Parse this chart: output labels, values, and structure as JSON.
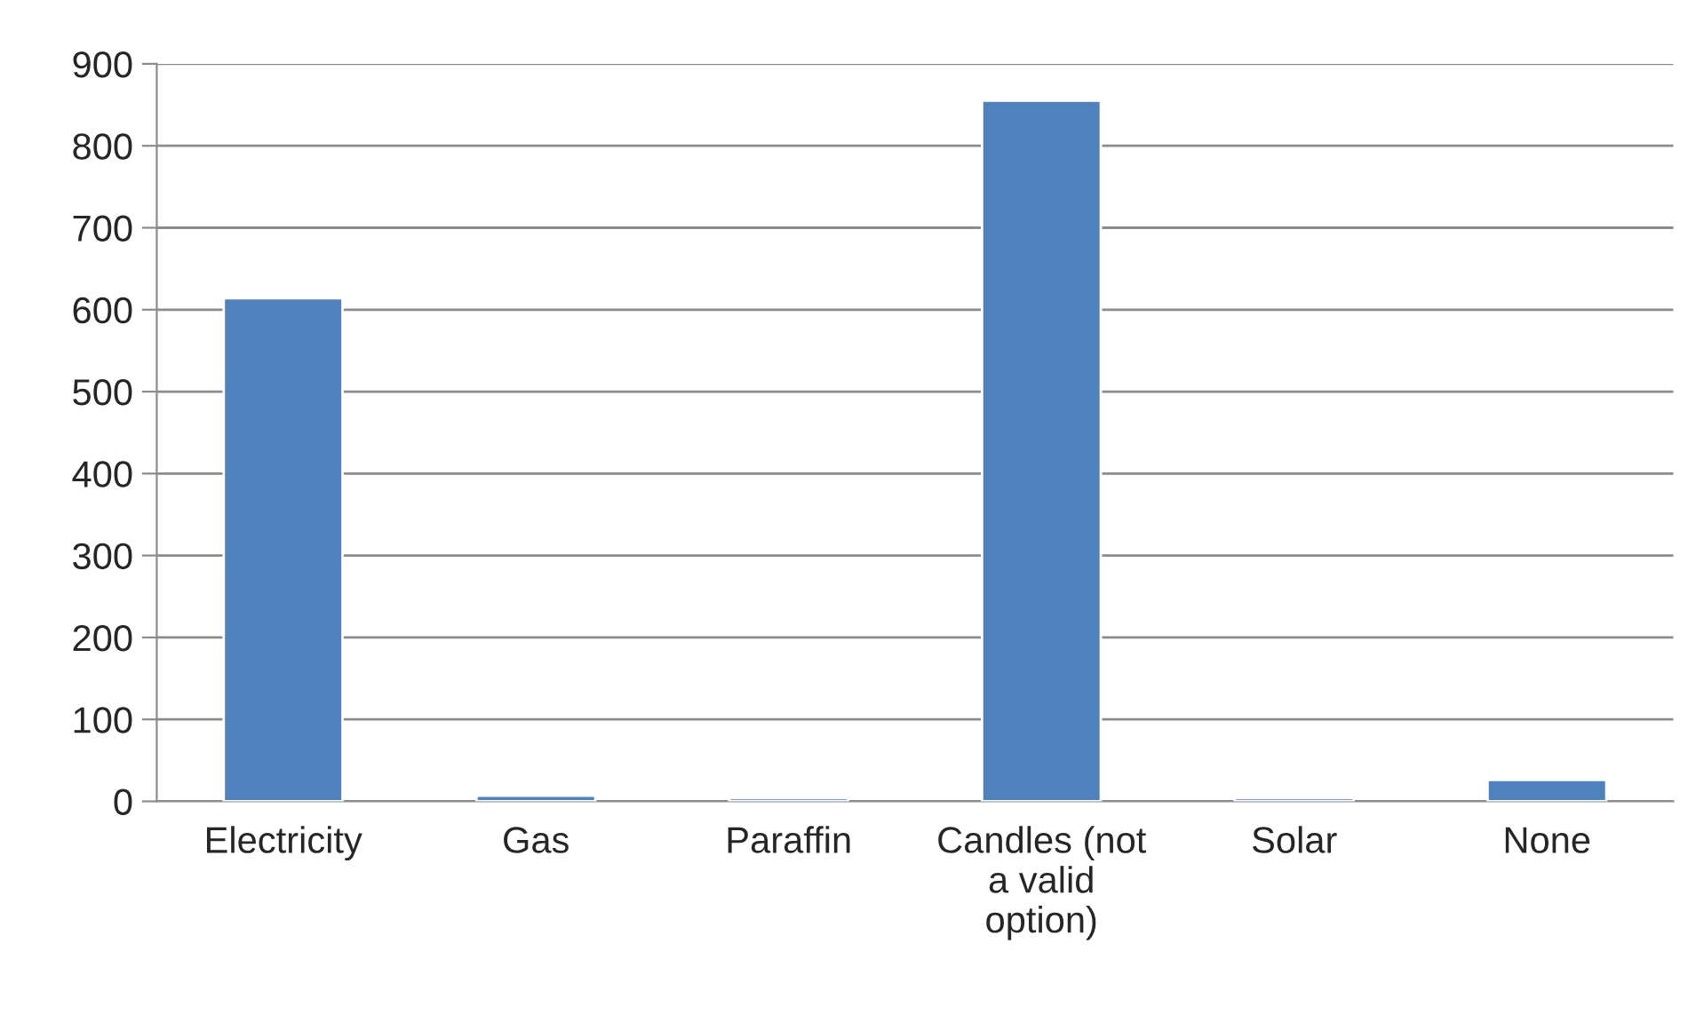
{
  "chart_data": {
    "type": "bar",
    "categories": [
      "Electricity",
      "Gas",
      "Paraffin",
      "Candles (not\na valid\noption)",
      "Solar",
      "None"
    ],
    "values": [
      614,
      7,
      4,
      855,
      4,
      26
    ],
    "color": "#4f81bd",
    "ylim": [
      0,
      900
    ],
    "yticks": [
      0,
      100,
      200,
      300,
      400,
      500,
      600,
      700,
      800,
      900
    ],
    "grid": "y"
  }
}
